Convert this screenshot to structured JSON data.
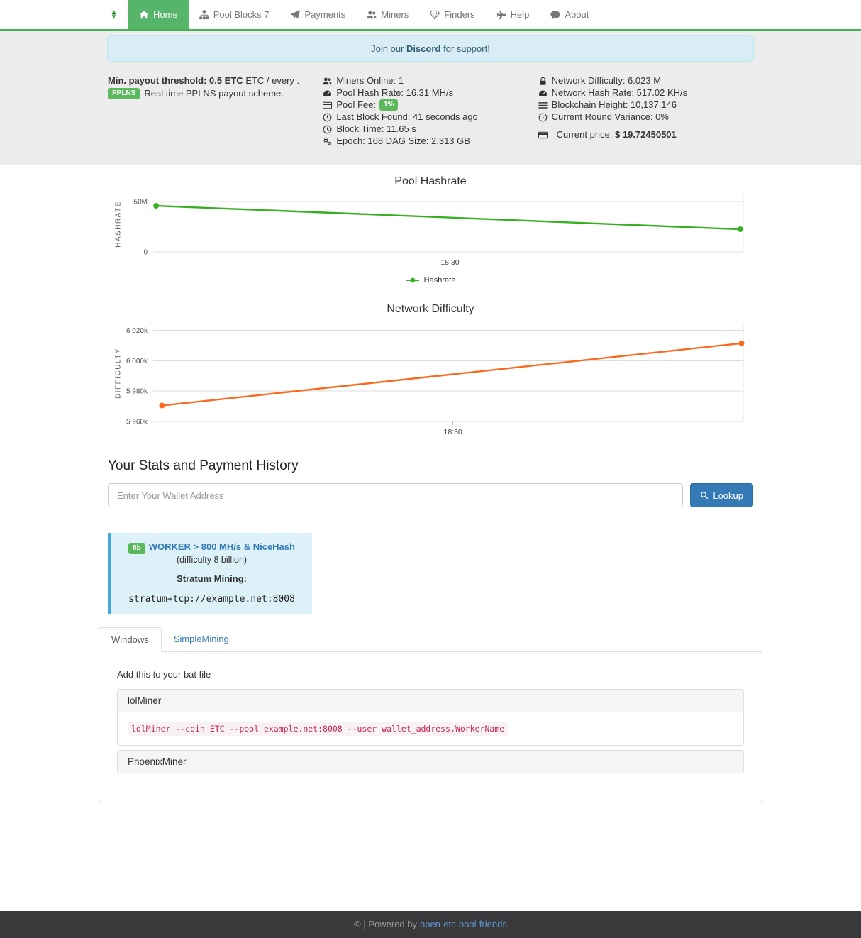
{
  "theme": {
    "accent_green": "#55b56a",
    "navbar_border_green": "#46b450",
    "badge_green": "#5cb85c",
    "primary_blue": "#337ab7",
    "alert_bg": "#d9edf7",
    "alert_border": "#bce8f1",
    "callout_border": "#46a7dd",
    "callout_bg": "#ddf1f9",
    "hashrate_line": "#35b01f",
    "difficulty_line": "#f96a1f",
    "code_red": "#c7254e",
    "footer_bg": "#39393b"
  },
  "navbar": {
    "logo_icon": "etc-logo",
    "items": [
      {
        "label": "Home",
        "icon": "home",
        "active": true
      },
      {
        "label": "Pool Blocks 7",
        "icon": "sitemap",
        "active": false
      },
      {
        "label": "Payments",
        "icon": "paper-plane",
        "active": false
      },
      {
        "label": "Miners",
        "icon": "users",
        "active": false
      },
      {
        "label": "Finders",
        "icon": "gem",
        "active": false
      },
      {
        "label": "Help",
        "icon": "plane",
        "active": false
      },
      {
        "label": "About",
        "icon": "comment",
        "active": false
      }
    ]
  },
  "banner": {
    "text_prefix": "Join our",
    "text_bold": "Discord",
    "text_suffix": "for support!"
  },
  "overview": {
    "payout_bold": "Min. payout threshold: 0.5 ETC",
    "payout_rest": "ETC / every .",
    "scheme_badge": "PPLNS",
    "scheme_text": "Real time PPLNS payout scheme.",
    "pool_stats": [
      {
        "icon": "users",
        "text": "Miners Online: 1"
      },
      {
        "icon": "tachometer",
        "text": "Pool Hash Rate: 16.31 MH/s"
      },
      {
        "icon": "credit-card",
        "text": "Pool Fee:",
        "badge": "1%"
      },
      {
        "icon": "clock",
        "text": "Last Block Found: 41 seconds ago"
      },
      {
        "icon": "clock",
        "text": "Block Time: 11.65 s"
      },
      {
        "icon": "cogs",
        "text": "Epoch: 168 DAG Size: 2.313 GB"
      }
    ],
    "network_stats": [
      {
        "icon": "lock",
        "text": "Network Difficulty: 6.023 M"
      },
      {
        "icon": "tachometer",
        "text": "Network Hash Rate: 517.02 KH/s"
      },
      {
        "icon": "bars",
        "text": "Blockchain Height: 10,137,146"
      },
      {
        "icon": "clock",
        "text": "Current Round Variance: 0%"
      },
      {
        "icon": "credit-card",
        "text": "Current price:",
        "bold": "$ 19.72450501",
        "spaced": true
      }
    ]
  },
  "chart_data": [
    {
      "type": "line",
      "title": "Pool Hashrate",
      "ylabel": "HASHRATE",
      "series": [
        {
          "name": "Hashrate",
          "color": "#35b01f",
          "x_frac": [
            0.005,
            0.995
          ],
          "values": [
            45800000,
            22500000
          ]
        }
      ],
      "yticks": [
        {
          "label": "50M",
          "value": 50000000
        },
        {
          "label": "0",
          "value": 0
        }
      ],
      "ylim": [
        0,
        55000000
      ],
      "xticks": [
        {
          "label": "18:30",
          "frac": 0.503
        }
      ],
      "grid": true,
      "legend": {
        "visible": true,
        "position": "bottom",
        "entries": [
          "Hashrate"
        ]
      }
    },
    {
      "type": "line",
      "title": "Network Difficulty",
      "ylabel": "DIFFICULTY",
      "series": [
        {
          "name": "Difficulty",
          "color": "#f96a1f",
          "x_frac": [
            0.015,
            0.997
          ],
          "values": [
            5970500,
            6011500
          ]
        }
      ],
      "yticks": [
        {
          "label": "6 020k",
          "value": 6020000
        },
        {
          "label": "6 000k",
          "value": 6000000
        },
        {
          "label": "5 980k",
          "value": 5980000
        },
        {
          "label": "5 960k",
          "value": 5960000
        }
      ],
      "ylim": [
        5960000,
        6024000
      ],
      "xticks": [
        {
          "label": "18:30",
          "frac": 0.508
        }
      ],
      "grid": true,
      "legend": {
        "visible": false
      }
    }
  ],
  "lookup": {
    "heading": "Your Stats and Payment History",
    "input_placeholder": "Enter Your Wallet Address",
    "input_value": "",
    "button_label": "Lookup",
    "button_icon": "search"
  },
  "callout": {
    "badge": "8b",
    "title": "WORKER > 800 MH/s & NiceHash",
    "subtitle": "(difficulty 8 billion)",
    "stratum_label": "Stratum Mining:",
    "stratum_url": "stratum+tcp://example.net:8008"
  },
  "miners_help": {
    "tabs": [
      {
        "label": "Windows",
        "active": true
      },
      {
        "label": "SimpleMining",
        "active": false
      }
    ],
    "instruction": "Add this to your bat file",
    "sections": [
      {
        "title": "lolMiner",
        "expanded": true,
        "code": "lolMiner --coin ETC --pool example.net:8008 --user wallet_address.WorkerName"
      },
      {
        "title": "PhoenixMiner",
        "expanded": false,
        "code": ""
      }
    ]
  },
  "footer": {
    "text_prefix": "© | Powered by",
    "link": "open-etc-pool-friends"
  }
}
